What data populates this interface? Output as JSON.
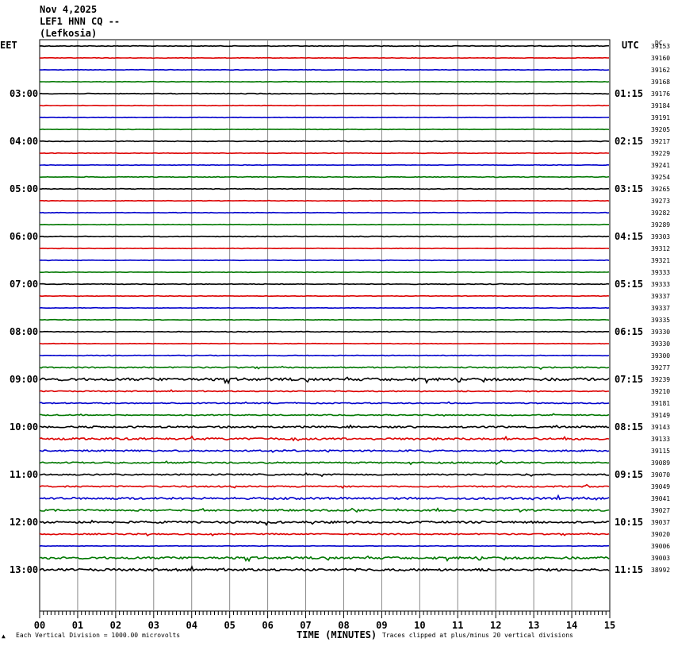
{
  "header": {
    "date": "Nov 4,2025",
    "station": "LEF1 HNN CQ --",
    "location": "(Lefkosia)",
    "left_tz": "EET",
    "right_tz": "UTC",
    "dc_label": "DC"
  },
  "footer": {
    "scale_note": "Each Vertical Division = 1000.00 microvolts",
    "x_title": "TIME (MINUTES)",
    "clip_note": "Traces clipped at plus/minus 20 vertical divisions"
  },
  "chart_data": {
    "type": "line",
    "title": "LEF1 HNN CQ --",
    "xlabel": "TIME (MINUTES)",
    "xlim": [
      0,
      15
    ],
    "x_ticks": [
      "00",
      "01",
      "02",
      "03",
      "04",
      "05",
      "06",
      "07",
      "08",
      "09",
      "10",
      "11",
      "12",
      "13",
      "14",
      "15"
    ],
    "trace_count": 45,
    "trace_colors": [
      "#000000",
      "#dd0000",
      "#0000cc",
      "#007700"
    ],
    "left_time_labels": [
      "03:00",
      "04:00",
      "05:00",
      "06:00",
      "07:00",
      "08:00",
      "09:00",
      "10:00",
      "11:00",
      "12:00",
      "13:00"
    ],
    "right_time_labels": [
      "01:15",
      "02:15",
      "03:15",
      "04:15",
      "05:15",
      "06:15",
      "07:15",
      "08:15",
      "09:15",
      "10:15",
      "11:15"
    ],
    "dc_offsets": [
      39153,
      39160,
      39162,
      39168,
      39176,
      39184,
      39191,
      39205,
      39217,
      39229,
      39241,
      39254,
      39265,
      39273,
      39282,
      39289,
      39303,
      39312,
      39321,
      39333,
      39333,
      39337,
      39337,
      39335,
      39330,
      39330,
      39300,
      39277,
      39239,
      39210,
      39181,
      39149,
      39143,
      39133,
      39115,
      39089,
      39070,
      39049,
      39041,
      39027,
      39037,
      39020,
      39006,
      39003,
      38992
    ],
    "noise_levels": [
      0.4,
      0.3,
      0.3,
      0.3,
      0.4,
      0.3,
      0.3,
      0.3,
      0.4,
      0.3,
      0.3,
      0.4,
      0.4,
      0.3,
      0.3,
      0.3,
      0.4,
      0.3,
      0.3,
      0.3,
      0.4,
      0.3,
      0.3,
      0.3,
      0.4,
      0.3,
      0.4,
      0.7,
      1.6,
      0.6,
      0.6,
      0.6,
      1.0,
      1.2,
      0.9,
      0.8,
      0.8,
      0.8,
      1.2,
      1.0,
      1.2,
      0.7,
      0.3,
      1.3,
      1.4
    ]
  }
}
